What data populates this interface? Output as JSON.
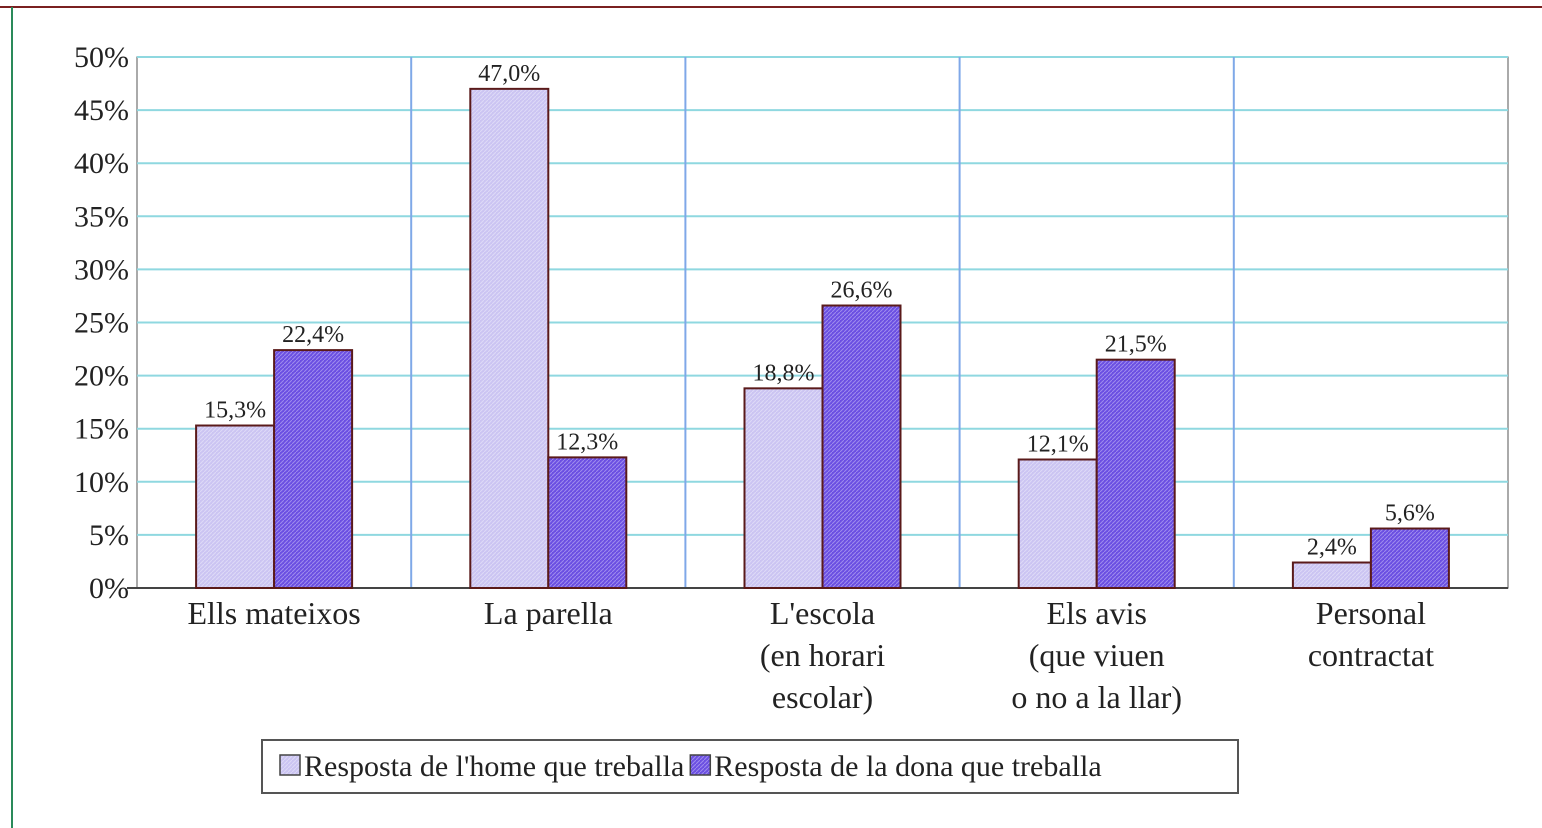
{
  "chart_data": {
    "type": "bar",
    "categories": [
      "Ells mateixos",
      "La parella",
      "L'escola\n(en horari\nescolar)",
      "Els avis\n(que viuen\no no a la llar)",
      "Personal\ncontractat"
    ],
    "series": [
      {
        "name": "Resposta de l'home que treballa",
        "color": "#cbc4f2",
        "values": [
          15.3,
          47.0,
          18.8,
          12.1,
          2.4
        ],
        "value_labels": [
          "15,3%",
          "47,0%",
          "18,8%",
          "12,1%",
          "2,4%"
        ]
      },
      {
        "name": "Resposta de la dona que treballa",
        "color": "#6b4fe2",
        "values": [
          22.4,
          12.3,
          26.6,
          21.5,
          5.6
        ],
        "value_labels": [
          "22,4%",
          "12,3%",
          "26,6%",
          "21,5%",
          "5,6%"
        ]
      }
    ],
    "ylim": [
      0,
      50
    ],
    "yticks": [
      {
        "value": 0,
        "label": "0%"
      },
      {
        "value": 5,
        "label": "5%"
      },
      {
        "value": 10,
        "label": "10%"
      },
      {
        "value": 15,
        "label": "15%"
      },
      {
        "value": 20,
        "label": "20%"
      },
      {
        "value": 25,
        "label": "25%"
      },
      {
        "value": 30,
        "label": "30%"
      },
      {
        "value": 35,
        "label": "35%"
      },
      {
        "value": 40,
        "label": "40%"
      },
      {
        "value": 45,
        "label": "45%"
      },
      {
        "value": 50,
        "label": "50%"
      }
    ],
    "grid": true,
    "legend": "bottom"
  }
}
